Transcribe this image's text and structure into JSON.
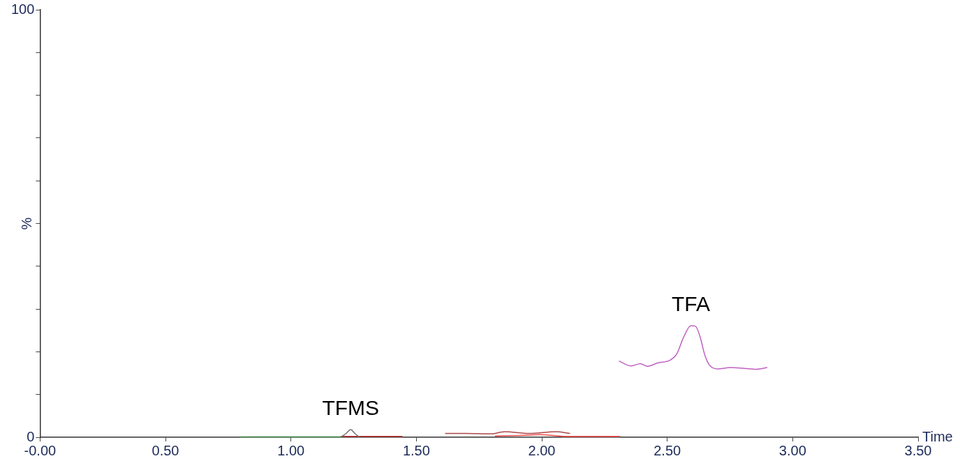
{
  "chart_data": {
    "type": "line",
    "xlabel": "Time",
    "ylabel": "%",
    "xlim": [
      0,
      3.5
    ],
    "ylim": [
      0,
      100
    ],
    "xticks": [
      {
        "value": 0,
        "label": "-0.00"
      },
      {
        "value": 0.5,
        "label": "0.50"
      },
      {
        "value": 1,
        "label": "1.00"
      },
      {
        "value": 1.5,
        "label": "1.50"
      },
      {
        "value": 2,
        "label": "2.00"
      },
      {
        "value": 2.5,
        "label": "2.50"
      },
      {
        "value": 3,
        "label": "3.00"
      },
      {
        "value": 3.5,
        "label": "3.50"
      }
    ],
    "yticks": [
      0,
      {
        "value": 10,
        "label": null
      },
      {
        "value": 20,
        "label": null
      },
      {
        "value": 30,
        "label": null
      },
      {
        "value": 40,
        "label": null
      },
      {
        "value": 50,
        "label": null
      },
      {
        "value": 60,
        "label": null
      },
      {
        "value": 70,
        "label": null
      },
      {
        "value": 80,
        "label": null
      },
      {
        "value": 90,
        "label": null
      },
      100
    ],
    "grid": false,
    "legend": false,
    "marker": "none",
    "line_style": "solid",
    "series": [
      {
        "color": "#2e7d32",
        "x": [
          0.8,
          0.9,
          1.0,
          1.1,
          1.2
        ],
        "values": [
          0.1,
          0.1,
          0.1,
          0.1,
          0.1
        ]
      },
      {
        "color": "#707070",
        "x": [
          1.2,
          1.22,
          1.238,
          1.255,
          1.271
        ],
        "values": [
          0.1,
          0.9,
          1.8,
          0.9,
          0.1
        ]
      },
      {
        "color": "#c03030",
        "x": [
          1.2,
          1.3,
          1.443
        ],
        "values": [
          0.2,
          0.2,
          0.2
        ]
      },
      {
        "color": "#b04848",
        "x": [
          1.616,
          1.7,
          1.799,
          1.852,
          1.95,
          2.057,
          2.111
        ],
        "values": [
          0.9,
          0.9,
          0.8,
          1.3,
          0.9,
          1.3,
          0.9
        ]
      },
      {
        "color": "#ff4a4a",
        "x": [
          1.815,
          1.9,
          1.993,
          2.1,
          2.2,
          2.311
        ],
        "values": [
          0.3,
          0.4,
          0.6,
          0.2,
          0.2,
          0.2
        ]
      },
      {
        "color": "#c060c0",
        "x": [
          2.309,
          2.355,
          2.393,
          2.421,
          2.463,
          2.51,
          2.538,
          2.566,
          2.594,
          2.612,
          2.631,
          2.65,
          2.668,
          2.701,
          2.752,
          2.808,
          2.855,
          2.897
        ],
        "values": [
          17.8,
          16.7,
          17.2,
          16.6,
          17.4,
          18.0,
          19.5,
          23.5,
          26.1,
          26.0,
          23.5,
          19.2,
          16.9,
          16.0,
          16.3,
          16.1,
          15.9,
          16.3
        ]
      }
    ],
    "annotations": [
      {
        "text": "TFMS",
        "x": 1.238,
        "y": 1.8
      },
      {
        "text": "TFA",
        "x": 2.594,
        "y": 26.1
      }
    ]
  }
}
